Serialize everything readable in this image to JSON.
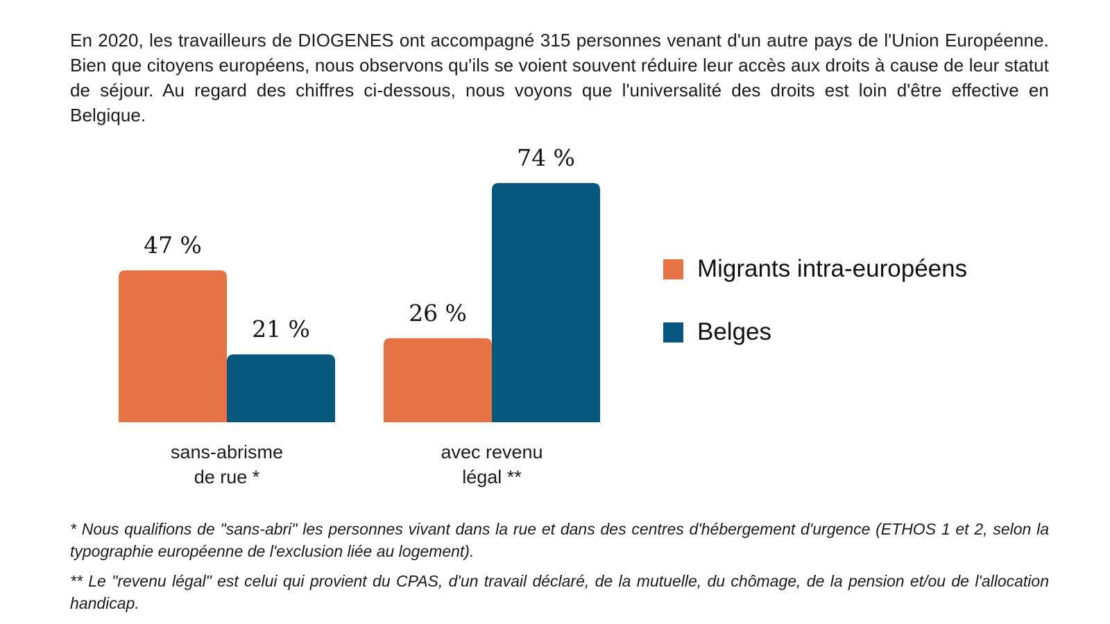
{
  "intro_text": "En 2020, les travailleurs de DIOGENES ont accompagné 315 personnes venant d'un autre pays de l'Union Européenne. Bien que citoyens européens, nous observons qu'ils se voient souvent réduire leur accès aux droits à cause de leur statut de séjour. Au regard des chiffres ci-dessous, nous voyons que l'universalité des droits est loin d'être effective en Belgique.",
  "chart_data": {
    "type": "bar",
    "categories": [
      [
        "sans-abrisme",
        "de rue *"
      ],
      [
        "avec revenu",
        "légal **"
      ]
    ],
    "series": [
      {
        "name": "Migrants intra-européens",
        "color": "#e57345",
        "values": [
          47,
          26
        ],
        "labels": [
          "47 %",
          "26 %"
        ]
      },
      {
        "name": "Belges",
        "color": "#08577f",
        "values": [
          21,
          74
        ],
        "labels": [
          "21 %",
          "74 %"
        ]
      }
    ],
    "unit": "%",
    "ylim": [
      0,
      74
    ],
    "grid": false,
    "legend_position": "right"
  },
  "footnotes": [
    "* Nous qualifions de \"sans-abri\" les personnes vivant dans la rue et dans des centres d'hébergement d'urgence (ETHOS 1 et 2, selon la typographie européenne de l'exclusion liée au logement).",
    "** Le \"revenu légal\" est celui qui provient du CPAS, d'un travail déclaré, de la mutuelle, du chômage, de la pension et/ou de l'allocation handicap."
  ]
}
